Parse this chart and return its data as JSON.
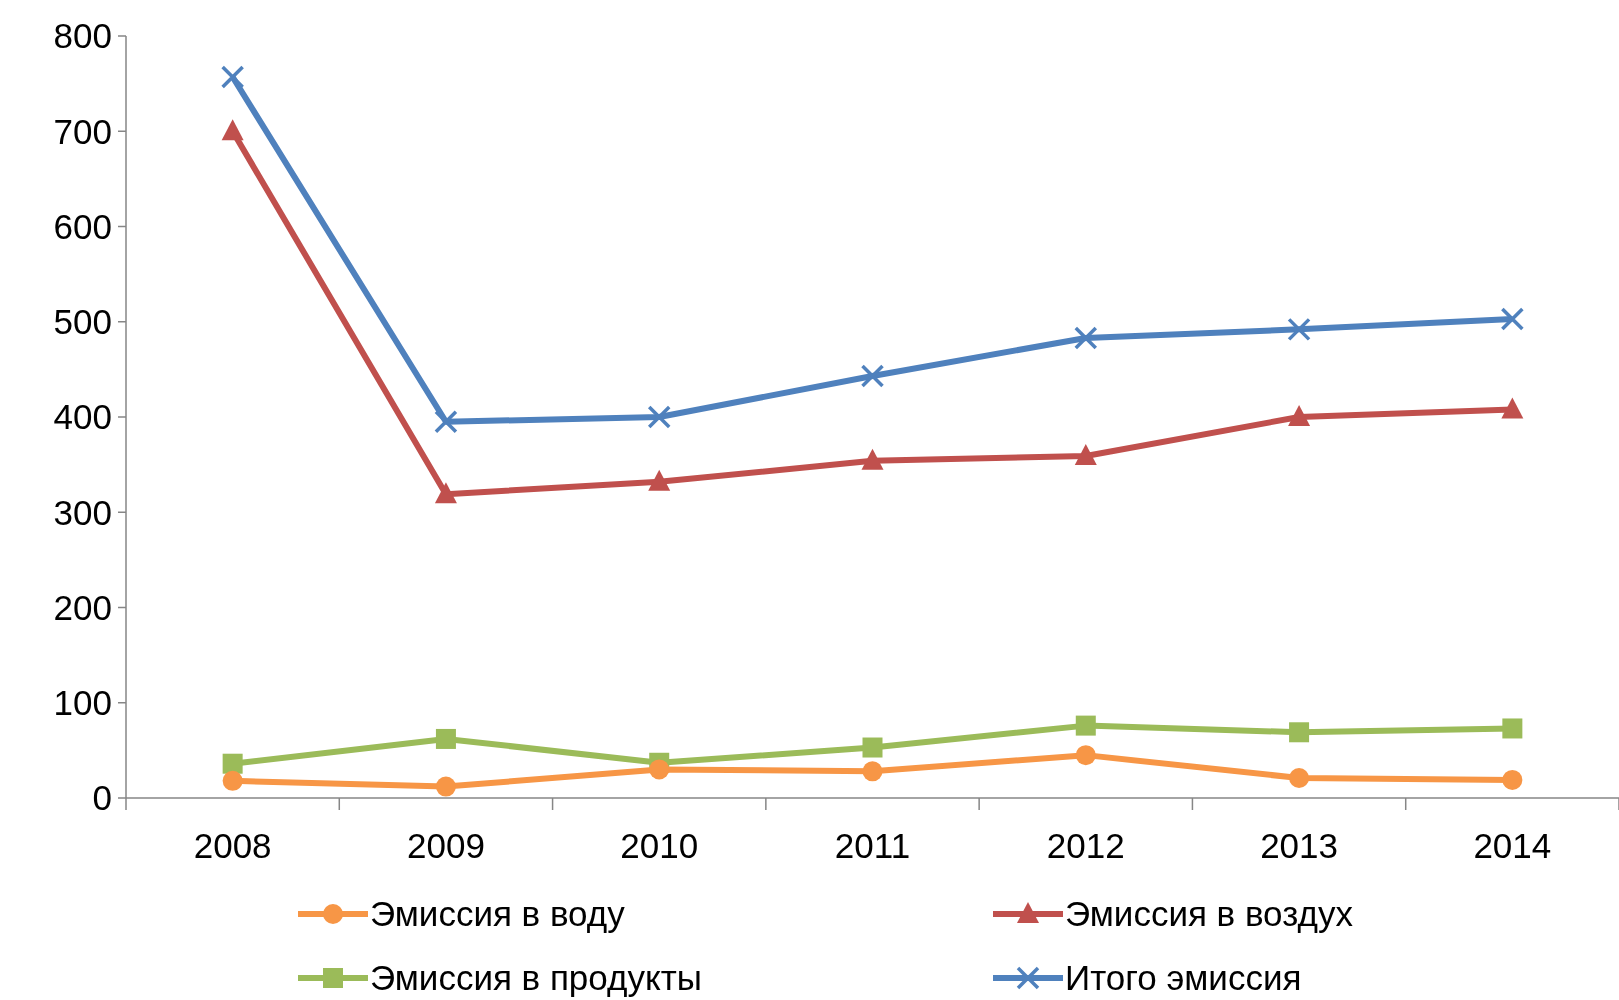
{
  "chart_data": {
    "type": "line",
    "categories": [
      "2008",
      "2009",
      "2010",
      "2011",
      "2012",
      "2013",
      "2014"
    ],
    "ylim": [
      0,
      800
    ],
    "yticks": [
      0,
      100,
      200,
      300,
      400,
      500,
      600,
      700,
      800
    ],
    "grid": false,
    "legend": "bottom",
    "series": [
      {
        "name": "Эмиссия в воду",
        "color": "#f79646",
        "marker": "circle",
        "values": [
          18,
          12,
          30,
          28,
          45,
          21,
          19
        ]
      },
      {
        "name": "Эмиссия в воздух",
        "color": "#c0504d",
        "marker": "triangle",
        "values": [
          700,
          319,
          332,
          354,
          359,
          400,
          408
        ]
      },
      {
        "name": "Эмиссия в продукты",
        "color": "#9bbb59",
        "marker": "square",
        "values": [
          36,
          62,
          37,
          53,
          76,
          69,
          73
        ]
      },
      {
        "name": "Итого эмиссия",
        "color": "#4f81bd",
        "marker": "cross",
        "values": [
          757,
          395,
          400,
          443,
          483,
          492,
          503
        ]
      }
    ]
  }
}
